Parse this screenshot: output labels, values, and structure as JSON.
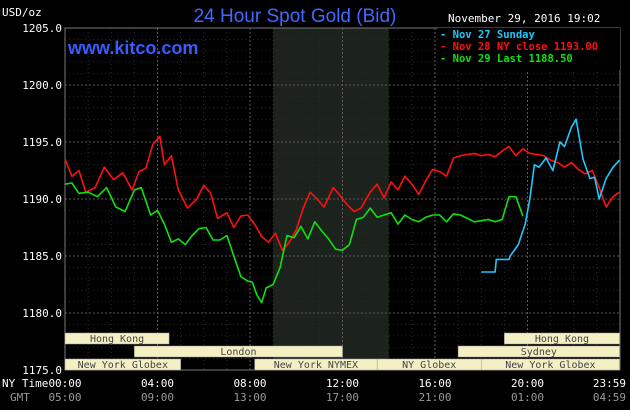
{
  "chart_data": {
    "type": "line",
    "title": "24 Hour Spot Gold (Bid)",
    "site": "www.kitco.com",
    "units": "USD/oz",
    "timestamp": "November 29, 2016 19:02",
    "ylim": [
      1175,
      1205
    ],
    "y_ticks": [
      "1205.0",
      "1200.0",
      "1195.0",
      "1190.0",
      "1185.0",
      "1180.0",
      "1175.0"
    ],
    "x_label_ny": "NY Time",
    "x_label_gmt": "GMT",
    "x_ticks_ny": [
      "00:00",
      "04:00",
      "08:00",
      "12:00",
      "16:00",
      "20:00",
      "23:59"
    ],
    "x_ticks_gmt": [
      "05:00",
      "09:00",
      "13:00",
      "17:00",
      "21:00",
      "01:00",
      "04:59"
    ],
    "grid": true,
    "legend_position": "top-right",
    "highlight_band_hours": [
      9,
      14
    ],
    "series": [
      {
        "name": "Nov 27 Sunday",
        "color": "#1ec8ff",
        "x": [
          18.0,
          18.6,
          18.65,
          19.2,
          19.25,
          19.6,
          19.9,
          20.1,
          20.3,
          20.5,
          20.8,
          21.1,
          21.4,
          21.6,
          21.9,
          22.1,
          22.4,
          22.7,
          22.9,
          23.1,
          23.4,
          23.7,
          23.98
        ],
        "y": [
          1183.6,
          1183.6,
          1184.7,
          1184.7,
          1185.0,
          1186.0,
          1187.8,
          1190.0,
          1193.0,
          1192.8,
          1193.6,
          1192.5,
          1195.0,
          1194.6,
          1196.3,
          1197.0,
          1193.5,
          1191.8,
          1191.9,
          1190.0,
          1191.8,
          1192.8,
          1193.4
        ]
      },
      {
        "name": "Nov 28 NY close 1193.00",
        "color": "#ff1010",
        "x": [
          0.0,
          0.3,
          0.6,
          0.9,
          1.3,
          1.7,
          2.1,
          2.5,
          2.9,
          3.2,
          3.5,
          3.8,
          4.1,
          4.3,
          4.6,
          4.9,
          5.3,
          5.7,
          6.0,
          6.3,
          6.6,
          7.0,
          7.3,
          7.6,
          7.9,
          8.2,
          8.5,
          8.8,
          9.1,
          9.4,
          9.7,
          10.0,
          10.3,
          10.6,
          10.9,
          11.2,
          11.6,
          11.9,
          12.2,
          12.5,
          12.8,
          13.2,
          13.5,
          13.8,
          14.1,
          14.4,
          14.7,
          15.0,
          15.3,
          15.6,
          15.9,
          16.2,
          16.5,
          16.8,
          17.1,
          17.4,
          17.7,
          18.0,
          18.3,
          18.6,
          18.9,
          19.2,
          19.5,
          19.8,
          20.1,
          20.4,
          20.7,
          21.0,
          21.3,
          21.6,
          21.9,
          22.2,
          22.5,
          22.8,
          23.1,
          23.4,
          23.7,
          23.98
        ],
        "y": [
          1193.5,
          1192.0,
          1192.5,
          1190.6,
          1191.0,
          1192.8,
          1191.7,
          1192.3,
          1190.8,
          1192.4,
          1192.7,
          1194.8,
          1195.5,
          1193.0,
          1193.8,
          1190.8,
          1189.2,
          1190.0,
          1191.2,
          1190.5,
          1188.3,
          1188.8,
          1187.5,
          1188.5,
          1188.6,
          1187.8,
          1186.7,
          1186.2,
          1187.0,
          1185.5,
          1186.2,
          1187.3,
          1189.2,
          1190.6,
          1190.0,
          1189.3,
          1191.0,
          1190.3,
          1189.5,
          1188.9,
          1189.2,
          1190.6,
          1191.3,
          1190.1,
          1191.5,
          1190.8,
          1192.0,
          1191.3,
          1190.4,
          1191.6,
          1192.6,
          1192.4,
          1192.0,
          1193.6,
          1193.8,
          1193.9,
          1194.0,
          1193.8,
          1193.9,
          1193.7,
          1194.2,
          1194.6,
          1193.8,
          1194.4,
          1194.0,
          1193.9,
          1193.8,
          1193.4,
          1193.2,
          1192.8,
          1193.2,
          1192.6,
          1192.2,
          1192.5,
          1191.0,
          1189.3,
          1190.2,
          1190.6
        ]
      },
      {
        "name": "Nov 29 Last 1188.50",
        "color": "#10e010",
        "x": [
          0.0,
          0.3,
          0.6,
          1.0,
          1.4,
          1.8,
          2.2,
          2.6,
          3.0,
          3.3,
          3.7,
          4.0,
          4.3,
          4.6,
          4.9,
          5.2,
          5.5,
          5.8,
          6.1,
          6.4,
          6.7,
          7.0,
          7.3,
          7.6,
          7.9,
          8.1,
          8.3,
          8.5,
          8.7,
          9.0,
          9.3,
          9.6,
          9.9,
          10.2,
          10.5,
          10.8,
          11.1,
          11.4,
          11.7,
          12.0,
          12.3,
          12.6,
          12.9,
          13.2,
          13.5,
          13.8,
          14.1,
          14.4,
          14.7,
          15.0,
          15.3,
          15.6,
          15.9,
          16.2,
          16.5,
          16.8,
          17.1,
          17.4,
          17.7,
          18.0,
          18.3,
          18.6,
          18.9,
          19.2,
          19.5,
          19.8
        ],
        "y": [
          1191.3,
          1191.4,
          1190.5,
          1190.6,
          1190.2,
          1191.0,
          1189.3,
          1188.9,
          1190.8,
          1191.0,
          1188.6,
          1189.0,
          1187.8,
          1186.2,
          1186.5,
          1186.0,
          1186.8,
          1187.4,
          1187.5,
          1186.4,
          1186.4,
          1186.8,
          1185.0,
          1183.2,
          1182.8,
          1182.7,
          1181.6,
          1180.9,
          1182.2,
          1182.5,
          1184.0,
          1186.8,
          1186.6,
          1187.6,
          1186.5,
          1188.0,
          1187.2,
          1186.5,
          1185.6,
          1185.5,
          1186.0,
          1188.2,
          1188.4,
          1189.2,
          1188.4,
          1188.6,
          1188.8,
          1187.8,
          1188.6,
          1188.2,
          1188.0,
          1188.4,
          1188.6,
          1188.6,
          1188.0,
          1188.7,
          1188.6,
          1188.3,
          1188.0,
          1188.1,
          1188.2,
          1188.0,
          1188.2,
          1190.2,
          1190.2,
          1188.5
        ]
      }
    ],
    "market_bars": [
      {
        "label": "Hong Kong",
        "start": 0.0,
        "end": 4.5,
        "row": 0
      },
      {
        "label": "Hong Kong",
        "start": 19.0,
        "end": 23.98,
        "row": 0
      },
      {
        "label": "London",
        "start": 3.0,
        "end": 12.0,
        "row": 1
      },
      {
        "label": "Sydney",
        "start": 17.0,
        "end": 23.98,
        "row": 1
      },
      {
        "label": "New York Globex",
        "start": 0.0,
        "end": 5.0,
        "row": 2
      },
      {
        "label": "New York NYMEX",
        "start": 8.2,
        "end": 13.5,
        "row": 2
      },
      {
        "label": "NY Globex",
        "start": 13.5,
        "end": 18.0,
        "row": 2
      },
      {
        "label": "New York Globex",
        "start": 18.0,
        "end": 23.98,
        "row": 2
      }
    ]
  }
}
